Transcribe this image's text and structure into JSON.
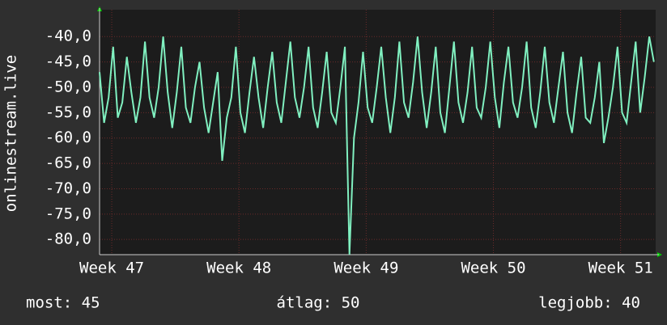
{
  "chart_data": {
    "type": "line",
    "ylabel": "onlinestream.live",
    "xlim": [
      0,
      30.6
    ],
    "ylim": [
      -83,
      -34.7
    ],
    "grid": true,
    "color": "#80f0c0",
    "xticks": [
      {
        "value": 0.67,
        "label": "Week 47"
      },
      {
        "value": 7.67,
        "label": "Week 48"
      },
      {
        "value": 14.67,
        "label": "Week 49"
      },
      {
        "value": 21.67,
        "label": "Week 50"
      },
      {
        "value": 28.67,
        "label": "Week 51"
      }
    ],
    "yticks": [
      {
        "value": -40,
        "label": "-40,0"
      },
      {
        "value": -45,
        "label": "-45,0"
      },
      {
        "value": -50,
        "label": "-50,0"
      },
      {
        "value": -55,
        "label": "-55,0"
      },
      {
        "value": -60,
        "label": "-60,0"
      },
      {
        "value": -65,
        "label": "-65,0"
      },
      {
        "value": -70,
        "label": "-70,0"
      },
      {
        "value": -75,
        "label": "-75,0"
      },
      {
        "value": -80,
        "label": "-80,0"
      }
    ],
    "x": [
      0,
      0.25,
      0.5,
      0.75,
      1,
      1.25,
      1.5,
      1.75,
      2,
      2.25,
      2.5,
      2.75,
      3,
      3.25,
      3.5,
      3.75,
      4,
      4.25,
      4.5,
      4.75,
      5,
      5.25,
      5.5,
      5.75,
      6,
      6.25,
      6.5,
      6.75,
      7,
      7.25,
      7.5,
      7.75,
      8,
      8.25,
      8.5,
      8.75,
      9,
      9.25,
      9.5,
      9.75,
      10,
      10.25,
      10.5,
      10.75,
      11,
      11.25,
      11.5,
      11.75,
      12,
      12.25,
      12.5,
      12.75,
      13,
      13.25,
      13.5,
      13.75,
      14,
      14.25,
      14.5,
      14.75,
      15,
      15.25,
      15.5,
      15.75,
      16,
      16.25,
      16.5,
      16.75,
      17,
      17.25,
      17.5,
      17.75,
      18,
      18.25,
      18.5,
      18.75,
      19,
      19.25,
      19.5,
      19.75,
      20,
      20.25,
      20.5,
      20.75,
      21,
      21.25,
      21.5,
      21.75,
      22,
      22.25,
      22.5,
      22.75,
      23,
      23.25,
      23.5,
      23.75,
      24,
      24.25,
      24.5,
      24.75,
      25,
      25.25,
      25.5,
      25.75,
      26,
      26.25,
      26.5,
      26.75,
      27,
      27.25,
      27.5,
      27.75,
      28,
      28.25,
      28.5,
      28.75,
      29,
      29.25,
      29.5,
      29.75,
      30,
      30.25,
      30.5
    ],
    "series": [
      {
        "name": "onlinestream.live",
        "color": "#80f0c0",
        "values": [
          -47,
          -57,
          -52,
          -42,
          -56,
          -53,
          -44,
          -51,
          -57,
          -52,
          -41,
          -52,
          -56,
          -50,
          -40,
          -51,
          -58,
          -51,
          -42,
          -54,
          -57,
          -50,
          -45,
          -54,
          -59,
          -53,
          -47,
          -64.5,
          -56,
          -52,
          -42,
          -55,
          -59,
          -51,
          -44,
          -52,
          -58,
          -50,
          -43,
          -53,
          -57,
          -49,
          -41,
          -52,
          -56,
          -50,
          -42,
          -54,
          -58,
          -51,
          -43,
          -55,
          -57,
          -50,
          -42,
          -83,
          -60,
          -53,
          -43,
          -54,
          -57,
          -50,
          -42,
          -52,
          -59,
          -52,
          -41,
          -53,
          -56,
          -49,
          -40,
          -51,
          -58,
          -51,
          -42,
          -55,
          -59,
          -50,
          -41,
          -53,
          -57,
          -51,
          -42,
          -54,
          -56,
          -50,
          -41,
          -52,
          -58,
          -49,
          -42,
          -53,
          -56,
          -50,
          -41,
          -54,
          -58,
          -51,
          -42,
          -53,
          -57,
          -50,
          -43,
          -55,
          -59,
          -51,
          -44,
          -56,
          -57,
          -52,
          -45,
          -61,
          -56,
          -50,
          -42,
          -55,
          -57,
          -49,
          -41,
          -55,
          -48,
          -40,
          -45
        ]
      }
    ]
  },
  "footer": {
    "current": "most: 45",
    "average": "átlag: 50",
    "best": "legjobb: 40"
  }
}
